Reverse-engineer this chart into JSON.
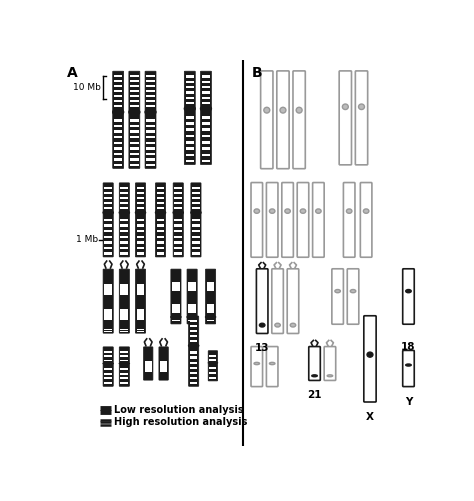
{
  "title_A": "A",
  "title_B": "B",
  "label_10mb": "10 Mb",
  "label_1mb": "1 Mb",
  "legend_low": "Low resolution analysis",
  "legend_high": "High resolution analysis",
  "bg_color": "#ffffff",
  "dark": "#1a1a1a",
  "gray": "#999999",
  "lightgray": "#bbbbbb",
  "white": "#ffffff"
}
